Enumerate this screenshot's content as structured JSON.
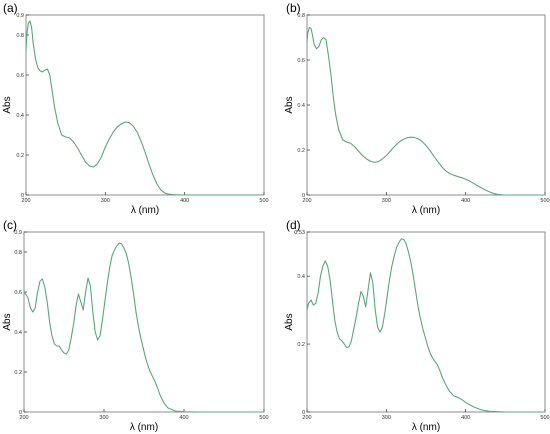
{
  "figure": {
    "line_color": "#5aa77a",
    "frame_color": "#8c8c8c"
  },
  "chart_data": [
    {
      "type": "line",
      "panel_label": "(a)",
      "xlabel": "λ (nm)",
      "ylabel": "Abs",
      "xlim": [
        200,
        500
      ],
      "ylim": [
        0,
        0.9
      ],
      "xticks": [
        "200",
        "300",
        "400",
        "500"
      ],
      "yticks": [
        "0",
        "0.2",
        "0.4",
        "0.6",
        "0.8",
        "0.9"
      ],
      "series": [
        {
          "x": [
            200,
            201,
            203,
            205,
            207,
            209,
            212,
            215,
            218,
            221,
            224,
            227,
            230,
            233,
            236,
            240,
            245,
            250,
            255,
            260,
            265,
            270,
            275,
            280,
            285,
            290,
            295,
            300,
            305,
            310,
            315,
            320,
            325,
            330,
            335,
            340,
            345,
            350,
            355,
            360,
            365,
            370,
            375,
            380,
            385,
            390,
            400,
            420,
            450,
            480,
            500
          ],
          "y": [
            0.72,
            0.8,
            0.86,
            0.87,
            0.84,
            0.76,
            0.68,
            0.635,
            0.62,
            0.615,
            0.625,
            0.63,
            0.6,
            0.52,
            0.44,
            0.36,
            0.3,
            0.29,
            0.285,
            0.265,
            0.235,
            0.2,
            0.165,
            0.145,
            0.14,
            0.155,
            0.19,
            0.24,
            0.28,
            0.315,
            0.34,
            0.355,
            0.365,
            0.362,
            0.345,
            0.315,
            0.27,
            0.215,
            0.155,
            0.1,
            0.055,
            0.025,
            0.01,
            0.004,
            0.002,
            0.001,
            0,
            0,
            0,
            0,
            0
          ]
        }
      ]
    },
    {
      "type": "line",
      "panel_label": "(b)",
      "xlabel": "λ (nm)",
      "ylabel": "Abs",
      "xlim": [
        200,
        500
      ],
      "ylim": [
        0,
        0.8
      ],
      "xticks": [
        "200",
        "300",
        "400",
        "500"
      ],
      "yticks": [
        "0",
        "0.2",
        "0.4",
        "0.6",
        "0.8"
      ],
      "series": [
        {
          "x": [
            200,
            201,
            203,
            205,
            207,
            209,
            212,
            215,
            218,
            221,
            224,
            227,
            230,
            233,
            236,
            240,
            245,
            250,
            255,
            260,
            265,
            270,
            275,
            280,
            285,
            290,
            295,
            300,
            305,
            310,
            315,
            320,
            325,
            330,
            335,
            340,
            345,
            350,
            355,
            360,
            365,
            370,
            375,
            380,
            385,
            390,
            395,
            400,
            405,
            410,
            415,
            420,
            425,
            430,
            435,
            440,
            445,
            450,
            460,
            480,
            500
          ],
          "y": [
            0.68,
            0.72,
            0.745,
            0.74,
            0.71,
            0.67,
            0.65,
            0.66,
            0.69,
            0.7,
            0.69,
            0.62,
            0.54,
            0.44,
            0.36,
            0.29,
            0.245,
            0.235,
            0.23,
            0.215,
            0.195,
            0.175,
            0.16,
            0.15,
            0.145,
            0.148,
            0.16,
            0.175,
            0.195,
            0.215,
            0.232,
            0.245,
            0.253,
            0.257,
            0.256,
            0.25,
            0.238,
            0.22,
            0.198,
            0.172,
            0.148,
            0.125,
            0.107,
            0.095,
            0.088,
            0.082,
            0.077,
            0.07,
            0.062,
            0.052,
            0.041,
            0.031,
            0.022,
            0.014,
            0.007,
            0.003,
            0.001,
            0,
            0,
            0,
            0
          ]
        }
      ]
    },
    {
      "type": "line",
      "panel_label": "(c)",
      "xlabel": "λ (nm)",
      "ylabel": "Abs",
      "xlim": [
        200,
        500
      ],
      "ylim": [
        0,
        0.9
      ],
      "xticks": [
        "200",
        "300",
        "400",
        "500"
      ],
      "yticks": [
        "0",
        "0.2",
        "0.4",
        "0.6",
        "0.8",
        "0.9"
      ],
      "series": [
        {
          "x": [
            200,
            202,
            205,
            208,
            211,
            214,
            217,
            220,
            223,
            226,
            229,
            232,
            235,
            238,
            241,
            244,
            247,
            250,
            253,
            256,
            259,
            262,
            265,
            268,
            271,
            274,
            277,
            280,
            283,
            286,
            289,
            292,
            295,
            298,
            301,
            304,
            307,
            310,
            313,
            316,
            319,
            322,
            325,
            328,
            331,
            334,
            337,
            340,
            343,
            346,
            349,
            352,
            355,
            358,
            361,
            364,
            367,
            370,
            375,
            380,
            390,
            400,
            420,
            450,
            500
          ],
          "y": [
            0.6,
            0.59,
            0.57,
            0.52,
            0.5,
            0.52,
            0.6,
            0.655,
            0.665,
            0.625,
            0.55,
            0.45,
            0.38,
            0.34,
            0.33,
            0.33,
            0.31,
            0.295,
            0.29,
            0.31,
            0.37,
            0.44,
            0.53,
            0.59,
            0.55,
            0.51,
            0.6,
            0.67,
            0.63,
            0.5,
            0.4,
            0.36,
            0.38,
            0.46,
            0.55,
            0.64,
            0.72,
            0.78,
            0.81,
            0.83,
            0.845,
            0.84,
            0.82,
            0.79,
            0.74,
            0.67,
            0.59,
            0.5,
            0.43,
            0.37,
            0.32,
            0.27,
            0.23,
            0.2,
            0.175,
            0.15,
            0.12,
            0.085,
            0.045,
            0.02,
            0.004,
            0.001,
            0,
            0,
            0
          ]
        }
      ]
    },
    {
      "type": "line",
      "panel_label": "(d)",
      "xlabel": "λ (nm)",
      "ylabel": "Abs",
      "xlim": [
        200,
        500
      ],
      "ylim": [
        0,
        0.53
      ],
      "xticks": [
        "200",
        "300",
        "400",
        "500"
      ],
      "yticks": [
        "0",
        "0.2",
        "0.4",
        "0.53"
      ],
      "series": [
        {
          "x": [
            200,
            202,
            205,
            208,
            211,
            214,
            217,
            220,
            223,
            226,
            229,
            232,
            235,
            238,
            241,
            244,
            247,
            250,
            253,
            256,
            259,
            262,
            265,
            268,
            271,
            274,
            277,
            280,
            283,
            286,
            289,
            292,
            295,
            298,
            301,
            304,
            307,
            310,
            313,
            316,
            319,
            322,
            325,
            328,
            331,
            334,
            337,
            340,
            343,
            346,
            349,
            352,
            355,
            358,
            361,
            364,
            367,
            370,
            375,
            380,
            385,
            390,
            395,
            400,
            410,
            420,
            430,
            440,
            450,
            500
          ],
          "y": [
            0.3,
            0.32,
            0.33,
            0.315,
            0.32,
            0.35,
            0.4,
            0.43,
            0.445,
            0.43,
            0.39,
            0.33,
            0.27,
            0.235,
            0.215,
            0.21,
            0.2,
            0.19,
            0.192,
            0.21,
            0.245,
            0.28,
            0.32,
            0.355,
            0.34,
            0.31,
            0.36,
            0.41,
            0.38,
            0.3,
            0.25,
            0.235,
            0.25,
            0.29,
            0.34,
            0.39,
            0.43,
            0.46,
            0.485,
            0.5,
            0.51,
            0.508,
            0.495,
            0.47,
            0.44,
            0.4,
            0.355,
            0.31,
            0.275,
            0.245,
            0.22,
            0.195,
            0.175,
            0.16,
            0.15,
            0.14,
            0.125,
            0.105,
            0.08,
            0.06,
            0.048,
            0.043,
            0.037,
            0.028,
            0.015,
            0.006,
            0.002,
            0.001,
            0,
            0
          ]
        }
      ]
    }
  ]
}
